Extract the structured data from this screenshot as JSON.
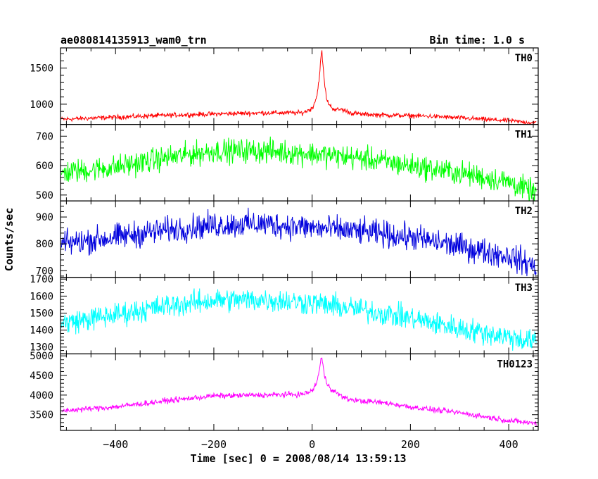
{
  "header": {
    "title": "ae080814135913_wam0_trn",
    "bin_time": "Bin time: 1.0 s"
  },
  "axis": {
    "xlabel": "Time [sec] 0 = 2008/08/14 13:59:13",
    "ylabel": "Counts/sec",
    "xlim": [
      -512,
      460
    ],
    "x_ticks": [
      -400,
      -200,
      0,
      200,
      400
    ],
    "x_tick_labels": [
      "−400",
      "−200",
      "0",
      "200",
      "400"
    ],
    "minor_x_step": 50
  },
  "chart_data": [
    {
      "type": "line",
      "name": "TH0",
      "color": "#ff0000",
      "ylim": [
        720,
        1780
      ],
      "y_ticks": [
        1000,
        1500
      ],
      "minor_y_step": 100,
      "series": [
        {
          "name": "TH0",
          "x": [
            -510,
            -400,
            -300,
            -200,
            -100,
            -20,
            0,
            10,
            15,
            18,
            20,
            22,
            25,
            30,
            35,
            40,
            50,
            60,
            70,
            80,
            100,
            150,
            200,
            250,
            300,
            350,
            400,
            455
          ],
          "y": [
            790,
            820,
            845,
            865,
            880,
            880,
            940,
            1120,
            1400,
            1650,
            1720,
            1550,
            1300,
            1050,
            1000,
            950,
            920,
            930,
            900,
            880,
            860,
            850,
            840,
            830,
            810,
            790,
            770,
            740
          ],
          "noise": 28
        }
      ]
    },
    {
      "type": "line",
      "name": "TH1",
      "color": "#00ff00",
      "ylim": [
        480,
        740
      ],
      "y_ticks": [
        500,
        600,
        700
      ],
      "minor_y_step": 20,
      "series": [
        {
          "name": "TH1",
          "x": [
            -510,
            -400,
            -300,
            -200,
            -100,
            0,
            100,
            200,
            300,
            400,
            455
          ],
          "y": [
            575,
            595,
            625,
            650,
            650,
            640,
            625,
            600,
            575,
            545,
            505
          ],
          "noise": 35
        }
      ]
    },
    {
      "type": "line",
      "name": "TH2",
      "color": "#0000dd",
      "ylim": [
        675,
        960
      ],
      "y_ticks": [
        700,
        800,
        900
      ],
      "minor_y_step": 20,
      "series": [
        {
          "name": "TH2",
          "x": [
            -510,
            -400,
            -300,
            -200,
            -100,
            0,
            100,
            200,
            300,
            400,
            455
          ],
          "y": [
            800,
            825,
            850,
            870,
            875,
            860,
            845,
            825,
            790,
            755,
            715
          ],
          "noise": 42
        }
      ]
    },
    {
      "type": "line",
      "name": "TH3",
      "color": "#00ffff",
      "ylim": [
        1260,
        1710
      ],
      "y_ticks": [
        1300,
        1400,
        1500,
        1600,
        1700
      ],
      "minor_y_step": 20,
      "series": [
        {
          "name": "TH3",
          "x": [
            -510,
            -400,
            -300,
            -200,
            -100,
            0,
            100,
            200,
            300,
            400,
            455
          ],
          "y": [
            1440,
            1490,
            1540,
            1575,
            1580,
            1560,
            1520,
            1470,
            1410,
            1360,
            1330
          ],
          "noise": 60
        }
      ]
    },
    {
      "type": "line",
      "name": "TH0123",
      "color": "#ff00ff",
      "ylim": [
        3100,
        5050
      ],
      "y_ticks": [
        3500,
        4000,
        4500,
        5000
      ],
      "minor_y_step": 100,
      "series": [
        {
          "name": "TH0123",
          "x": [
            -510,
            -400,
            -300,
            -200,
            -100,
            -20,
            0,
            10,
            15,
            18,
            20,
            22,
            25,
            30,
            40,
            50,
            70,
            100,
            150,
            200,
            250,
            300,
            350,
            400,
            455
          ],
          "y": [
            3600,
            3700,
            3850,
            3980,
            4000,
            4020,
            4100,
            4350,
            4650,
            4900,
            4960,
            4750,
            4500,
            4300,
            4150,
            4050,
            3900,
            3850,
            3800,
            3700,
            3620,
            3550,
            3450,
            3350,
            3280
          ],
          "noise": 60
        }
      ]
    }
  ]
}
